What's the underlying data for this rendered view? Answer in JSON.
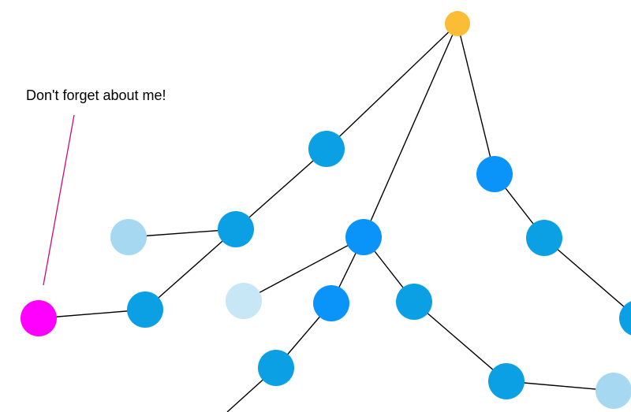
{
  "annotation": {
    "text": "Don't forget about me!"
  },
  "colors": {
    "root": "#fbbd36",
    "node_blue": "#0aa0e3",
    "node_bright_blue": "#0a94fa",
    "node_light": "#a6d8f2",
    "node_lighter": "#c7e6f6",
    "highlight": "#ff00ff",
    "edge": "#000000",
    "pointer_line": "#cc0a7a"
  },
  "graph": {
    "nodes": [
      {
        "id": "root",
        "style": "root"
      },
      {
        "id": "n1",
        "style": "node_blue"
      },
      {
        "id": "n2",
        "style": "node_bright_blue"
      },
      {
        "id": "n3",
        "style": "node_bright_blue"
      },
      {
        "id": "n4",
        "style": "node_blue"
      },
      {
        "id": "n5",
        "style": "node_light"
      },
      {
        "id": "n6",
        "style": "node_blue"
      },
      {
        "id": "n7",
        "style": "highlight"
      },
      {
        "id": "n8",
        "style": "node_lighter"
      },
      {
        "id": "n9",
        "style": "node_bright_blue"
      },
      {
        "id": "n10",
        "style": "node_blue"
      },
      {
        "id": "n11",
        "style": "node_blue"
      },
      {
        "id": "n12",
        "style": "node_blue"
      },
      {
        "id": "n13",
        "style": "node_light"
      },
      {
        "id": "n14",
        "style": "node_blue"
      },
      {
        "id": "n15",
        "style": "node_blue"
      }
    ],
    "edges": [
      [
        "root",
        "n1"
      ],
      [
        "root",
        "n2"
      ],
      [
        "root",
        "n3"
      ],
      [
        "n1",
        "n4"
      ],
      [
        "n4",
        "n5"
      ],
      [
        "n4",
        "n6"
      ],
      [
        "n6",
        "n7"
      ],
      [
        "n2",
        "n8"
      ],
      [
        "n2",
        "n9"
      ],
      [
        "n2",
        "n10"
      ],
      [
        "n9",
        "n11"
      ],
      [
        "n11",
        "offpage_bottom"
      ],
      [
        "n10",
        "n12"
      ],
      [
        "n12",
        "n13"
      ],
      [
        "n3",
        "n14"
      ],
      [
        "n14",
        "n15"
      ]
    ],
    "annotated_node": "n7"
  }
}
